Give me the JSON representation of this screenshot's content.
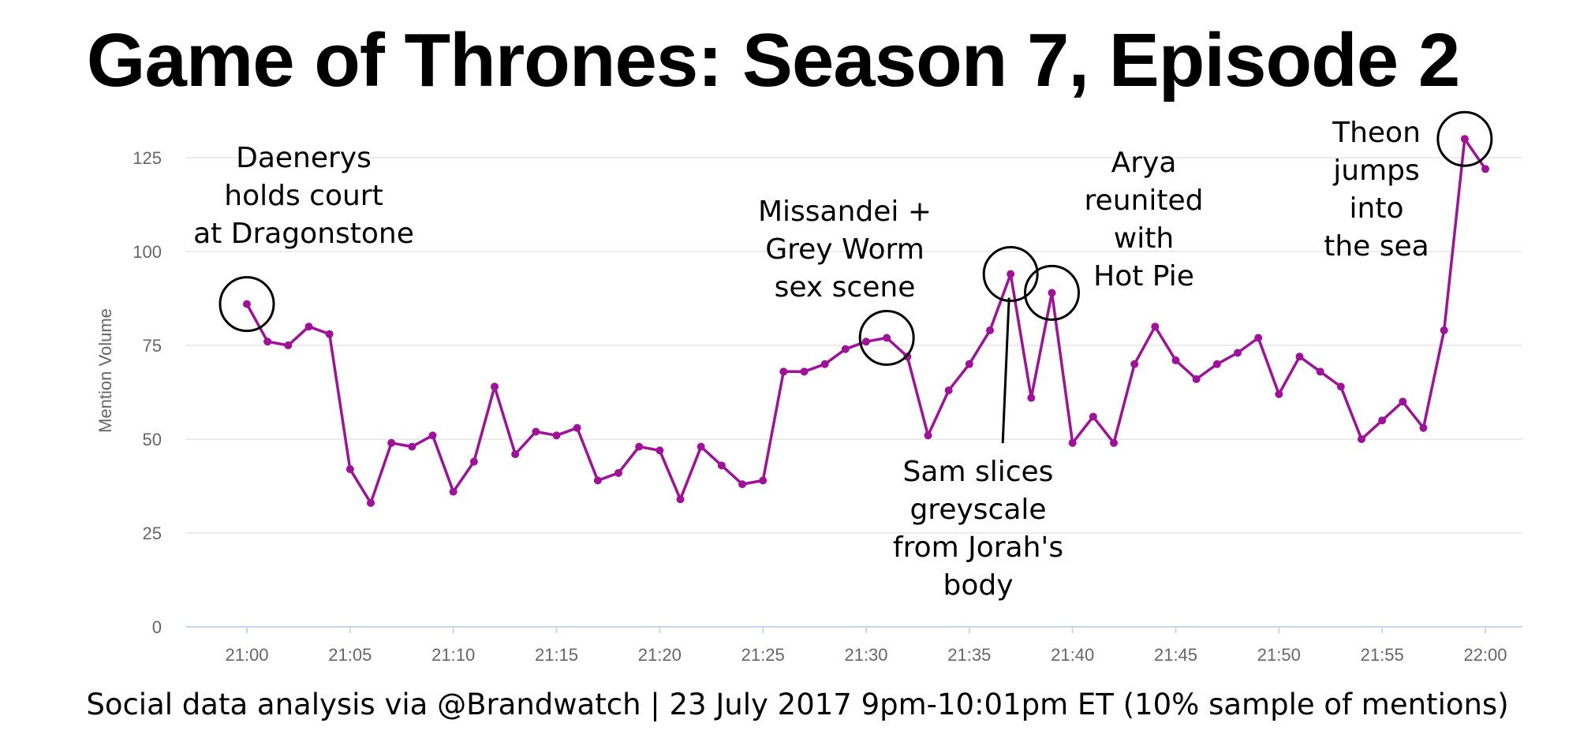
{
  "title": "Game of Thrones: Season 7, Episode 2",
  "footer": "Social data analysis via @Brandwatch | 23 July 2017 9pm-10:01pm ET (10% sample of mentions)",
  "chart_data": {
    "type": "line",
    "title": "Game of Thrones: Season 7, Episode 2",
    "ylabel": "Mention Volume",
    "xlabel": "",
    "ylim": [
      0,
      125
    ],
    "yticks": [
      0,
      25,
      50,
      75,
      100,
      125
    ],
    "xticks": [
      "21:00",
      "21:05",
      "21:10",
      "21:15",
      "21:20",
      "21:25",
      "21:30",
      "21:35",
      "21:40",
      "21:45",
      "21:50",
      "21:55",
      "22:00"
    ],
    "grid": true,
    "line_color": "#a0119a",
    "series": [
      {
        "x": [
          "21:00",
          "21:01",
          "21:02",
          "21:03",
          "21:04",
          "21:05",
          "21:06",
          "21:07",
          "21:08",
          "21:09",
          "21:10",
          "21:11",
          "21:12",
          "21:13",
          "21:14",
          "21:15",
          "21:16",
          "21:17",
          "21:18",
          "21:19",
          "21:20",
          "21:21",
          "21:22",
          "21:23",
          "21:24",
          "21:25",
          "21:26",
          "21:27",
          "21:28",
          "21:29",
          "21:30",
          "21:31",
          "21:32",
          "21:33",
          "21:34",
          "21:35",
          "21:36",
          "21:37",
          "21:38",
          "21:39",
          "21:40",
          "21:41",
          "21:42",
          "21:43",
          "21:44",
          "21:45",
          "21:46",
          "21:47",
          "21:48",
          "21:49",
          "21:50",
          "21:51",
          "21:52",
          "21:53",
          "21:54",
          "21:55",
          "21:56",
          "21:57",
          "21:58",
          "21:59",
          "22:00"
        ],
        "values": [
          86,
          76,
          75,
          80,
          78,
          42,
          33,
          49,
          48,
          51,
          36,
          44,
          64,
          46,
          52,
          51,
          53,
          39,
          41,
          48,
          47,
          34,
          48,
          43,
          38,
          39,
          68,
          68,
          70,
          74,
          76,
          77,
          72,
          51,
          63,
          70,
          79,
          94,
          61,
          89,
          49,
          56,
          49,
          70,
          80,
          71,
          66,
          70,
          73,
          77,
          62,
          72,
          68,
          64,
          50,
          55,
          60,
          53,
          79,
          130,
          122
        ]
      }
    ],
    "annotations": [
      {
        "x": "21:00",
        "lines": [
          "Daenerys",
          "holds court",
          "at Dragonstone"
        ]
      },
      {
        "x": "21:31",
        "lines": [
          "Missandei +",
          "Grey Worm",
          "sex scene"
        ]
      },
      {
        "x": "21:37",
        "lines": [
          "Sam slices",
          "greyscale",
          "from Jorah's",
          "body"
        ]
      },
      {
        "x": "21:39",
        "lines": [
          "Arya",
          "reunited",
          "with",
          "Hot Pie"
        ]
      },
      {
        "x": "21:59",
        "lines": [
          "Theon",
          "jumps",
          "into",
          "the sea"
        ]
      }
    ]
  }
}
